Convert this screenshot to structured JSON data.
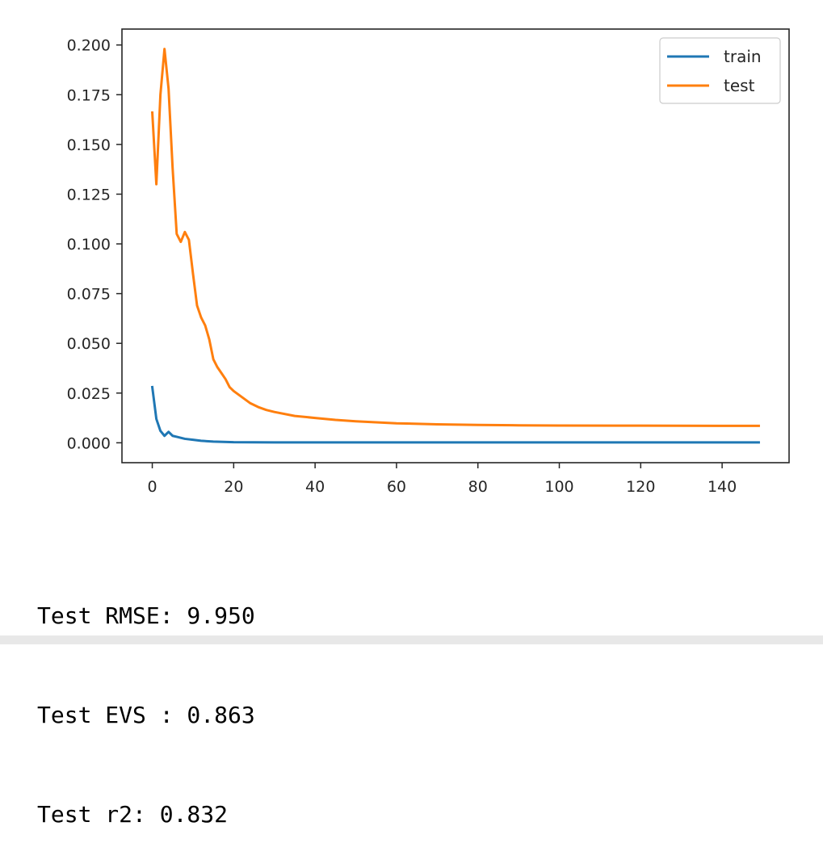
{
  "chart_data": {
    "type": "line",
    "title": "",
    "xlabel": "",
    "ylabel": "",
    "xlim": [
      -7.45,
      156.45
    ],
    "ylim": [
      -0.01,
      0.208
    ],
    "xticks": [
      0,
      20,
      40,
      60,
      80,
      100,
      120,
      140
    ],
    "yticks": [
      0.0,
      0.025,
      0.05,
      0.075,
      0.1,
      0.125,
      0.15,
      0.175,
      0.2
    ],
    "xtick_labels": [
      "0",
      "20",
      "40",
      "60",
      "80",
      "100",
      "120",
      "140"
    ],
    "ytick_labels": [
      "0.000",
      "0.025",
      "0.050",
      "0.075",
      "0.100",
      "0.125",
      "0.150",
      "0.175",
      "0.200"
    ],
    "grid": false,
    "legend_position": "top-right",
    "series": [
      {
        "name": "train",
        "color": "#1f77b4",
        "x": [
          0,
          1,
          2,
          3,
          4,
          5,
          6,
          7,
          8,
          10,
          12,
          15,
          20,
          30,
          40,
          60,
          80,
          100,
          120,
          149
        ],
        "y": [
          0.028,
          0.012,
          0.006,
          0.0035,
          0.0055,
          0.0035,
          0.003,
          0.0025,
          0.002,
          0.0015,
          0.001,
          0.0006,
          0.0003,
          0.0002,
          0.0002,
          0.0002,
          0.0002,
          0.0002,
          0.0002,
          0.0002
        ]
      },
      {
        "name": "test",
        "color": "#ff7f0e",
        "x": [
          0,
          1,
          2,
          3,
          4,
          5,
          6,
          7,
          8,
          9,
          10,
          11,
          12,
          13,
          14,
          15,
          16,
          17,
          18,
          19,
          20,
          22,
          24,
          26,
          28,
          30,
          35,
          40,
          45,
          50,
          60,
          70,
          80,
          90,
          100,
          120,
          149
        ],
        "y": [
          0.166,
          0.13,
          0.175,
          0.198,
          0.178,
          0.138,
          0.105,
          0.101,
          0.106,
          0.102,
          0.085,
          0.069,
          0.063,
          0.059,
          0.052,
          0.042,
          0.038,
          0.035,
          0.032,
          0.028,
          0.026,
          0.023,
          0.02,
          0.018,
          0.0165,
          0.0155,
          0.0135,
          0.0125,
          0.0115,
          0.0108,
          0.0098,
          0.0093,
          0.009,
          0.0088,
          0.0087,
          0.0086,
          0.0085
        ]
      }
    ]
  },
  "output": {
    "lines": [
      "Test RMSE: 9.950",
      "Test EVS : 0.863",
      "Test r2: 0.832"
    ]
  }
}
